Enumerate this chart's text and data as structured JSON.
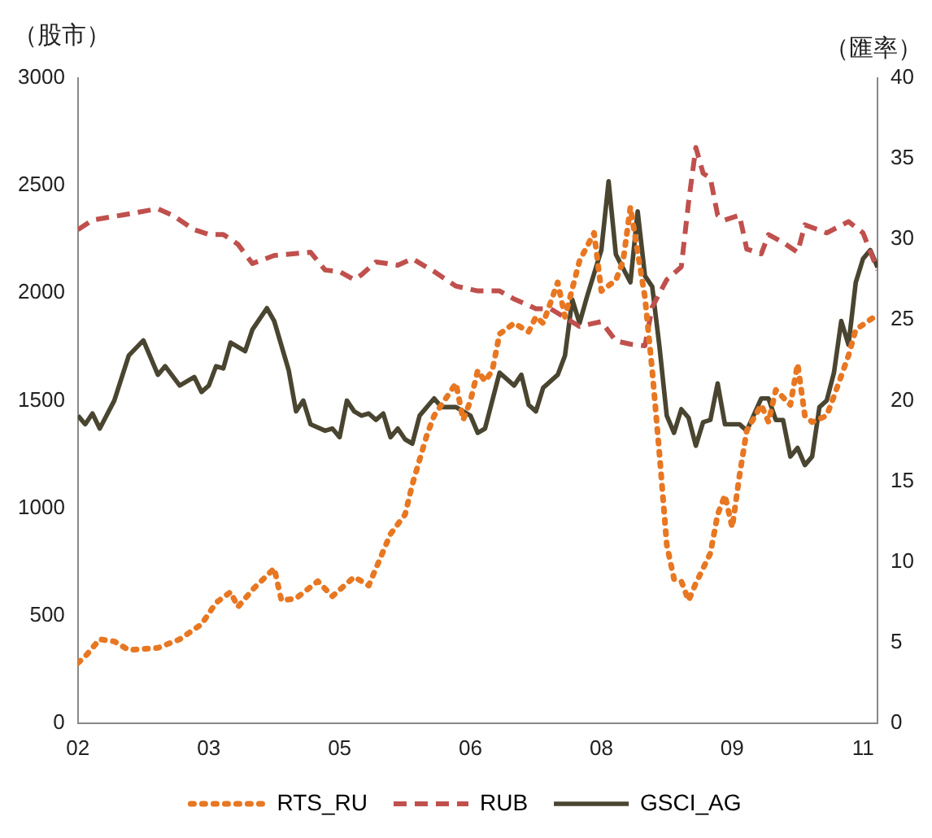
{
  "chart_data": {
    "type": "line",
    "ylabel": "（股市）",
    "y2label": "（匯率）",
    "xlim": [
      "2002-01",
      "2011-03"
    ],
    "xticks": [
      {
        "value": "2002-01",
        "label": "02"
      },
      {
        "value": "2003-07",
        "label": "03"
      },
      {
        "value": "2005-01",
        "label": "05"
      },
      {
        "value": "2006-07",
        "label": "06"
      },
      {
        "value": "2008-01",
        "label": "08"
      },
      {
        "value": "2009-07",
        "label": "09"
      },
      {
        "value": "2011-01",
        "label": "11"
      }
    ],
    "ylim": [
      0,
      3000
    ],
    "yticks": [
      0,
      500,
      1000,
      1500,
      2000,
      2500,
      3000
    ],
    "y2lim": [
      0,
      40
    ],
    "y2ticks": [
      0,
      5,
      10,
      15,
      20,
      25,
      30,
      35,
      40
    ],
    "grid": false,
    "legend": "bottom",
    "marker": "none",
    "series": [
      {
        "name": "RTS_RU",
        "color": "#e87722",
        "line_style": "dotted",
        "x": [
          "2002-01",
          "2002-02",
          "2002-04",
          "2002-06",
          "2002-08",
          "2002-12",
          "2003-03",
          "2003-06",
          "2003-08",
          "2003-10",
          "2003-11",
          "2004-01",
          "2004-04",
          "2004-05",
          "2004-07",
          "2004-10",
          "2004-12",
          "2005-03",
          "2005-05",
          "2005-06",
          "2005-08",
          "2005-10",
          "2005-11",
          "2006-01",
          "2006-02",
          "2006-05",
          "2006-06",
          "2006-07",
          "2006-08",
          "2006-09",
          "2006-10",
          "2006-11",
          "2007-01",
          "2007-03",
          "2007-04",
          "2007-05",
          "2007-07",
          "2007-08",
          "2007-10",
          "2007-12",
          "2008-01",
          "2008-03",
          "2008-04",
          "2008-05",
          "2008-06",
          "2008-07",
          "2008-08",
          "2008-09",
          "2008-10",
          "2008-11",
          "2008-12",
          "2009-01",
          "2009-02",
          "2009-04",
          "2009-05",
          "2009-06",
          "2009-07",
          "2009-08",
          "2009-09",
          "2009-11",
          "2009-12",
          "2010-01",
          "2010-03",
          "2010-04",
          "2010-05",
          "2010-06",
          "2010-08",
          "2010-09",
          "2010-11",
          "2010-12",
          "2011-03"
        ],
        "values": [
          280,
          310,
          390,
          380,
          340,
          350,
          390,
          460,
          560,
          610,
          540,
          620,
          720,
          570,
          580,
          660,
          590,
          680,
          640,
          720,
          880,
          970,
          1110,
          1340,
          1430,
          1580,
          1410,
          1500,
          1640,
          1590,
          1640,
          1810,
          1860,
          1820,
          1890,
          1860,
          2050,
          1890,
          2150,
          2280,
          2010,
          2060,
          2150,
          2400,
          2190,
          1980,
          1640,
          1250,
          830,
          670,
          660,
          570,
          650,
          790,
          970,
          1060,
          910,
          1150,
          1360,
          1480,
          1400,
          1550,
          1480,
          1670,
          1430,
          1400,
          1430,
          1520,
          1710,
          1830,
          1900
        ]
      },
      {
        "name": "RUB",
        "color": "#c0504d",
        "line_style": "dashed",
        "axis": "y2",
        "x": [
          "2002-01",
          "2002-03",
          "2002-07",
          "2002-12",
          "2003-02",
          "2003-05",
          "2003-07",
          "2003-09",
          "2003-11",
          "2004-01",
          "2004-04",
          "2004-09",
          "2004-11",
          "2005-01",
          "2005-03",
          "2005-04",
          "2005-06",
          "2005-09",
          "2005-11",
          "2006-02",
          "2006-05",
          "2006-08",
          "2006-11",
          "2007-01",
          "2007-04",
          "2007-06",
          "2007-10",
          "2008-01",
          "2008-03",
          "2008-05",
          "2008-07",
          "2008-08",
          "2008-10",
          "2008-12",
          "2009-01",
          "2009-02",
          "2009-03",
          "2009-04",
          "2009-05",
          "2009-06",
          "2009-08",
          "2009-09",
          "2009-11",
          "2009-12",
          "2010-02",
          "2010-04",
          "2010-05",
          "2010-08",
          "2010-11",
          "2011-01",
          "2011-03"
        ],
        "values": [
          30.6,
          31.2,
          31.5,
          31.9,
          31.5,
          30.6,
          30.3,
          30.3,
          29.7,
          28.5,
          29.0,
          29.2,
          28.1,
          28.0,
          27.5,
          27.8,
          28.6,
          28.4,
          28.8,
          28.0,
          27.1,
          26.8,
          26.8,
          26.3,
          25.7,
          25.7,
          24.6,
          24.9,
          23.7,
          23.5,
          23.4,
          25.8,
          27.5,
          28.3,
          32.3,
          35.7,
          34.1,
          33.8,
          31.5,
          31.2,
          31.5,
          29.4,
          29.1,
          30.3,
          29.8,
          29.2,
          30.9,
          30.4,
          31.1,
          30.4,
          28.1
        ]
      },
      {
        "name": "GSCI_AG",
        "color": "#4a4530",
        "line_style": "solid",
        "x": [
          "2002-01",
          "2002-02",
          "2002-03",
          "2002-04",
          "2002-06",
          "2002-08",
          "2002-10",
          "2002-12",
          "2003-01",
          "2003-03",
          "2003-05",
          "2003-06",
          "2003-07",
          "2003-08",
          "2003-09",
          "2003-10",
          "2003-12",
          "2004-01",
          "2004-03",
          "2004-04",
          "2004-06",
          "2004-07",
          "2004-08",
          "2004-09",
          "2004-11",
          "2004-12",
          "2005-01",
          "2005-02",
          "2005-03",
          "2005-04",
          "2005-05",
          "2005-06",
          "2005-07",
          "2005-08",
          "2005-09",
          "2005-10",
          "2005-11",
          "2005-12",
          "2006-02",
          "2006-03",
          "2006-05",
          "2006-07",
          "2006-08",
          "2006-09",
          "2006-11",
          "2007-01",
          "2007-02",
          "2007-03",
          "2007-04",
          "2007-05",
          "2007-07",
          "2007-08",
          "2007-09",
          "2007-10",
          "2007-11",
          "2008-01",
          "2008-02",
          "2008-03",
          "2008-05",
          "2008-06",
          "2008-07",
          "2008-08",
          "2008-09",
          "2008-10",
          "2008-11",
          "2008-12",
          "2009-01",
          "2009-02",
          "2009-03",
          "2009-04",
          "2009-05",
          "2009-06",
          "2009-08",
          "2009-09",
          "2009-11",
          "2009-12",
          "2010-01",
          "2010-02",
          "2010-03",
          "2010-04",
          "2010-05",
          "2010-06",
          "2010-07",
          "2010-08",
          "2010-09",
          "2010-10",
          "2010-11",
          "2010-12",
          "2011-01",
          "2011-02",
          "2011-03"
        ],
        "values": [
          1430,
          1390,
          1440,
          1370,
          1500,
          1710,
          1780,
          1620,
          1660,
          1570,
          1610,
          1540,
          1570,
          1660,
          1650,
          1770,
          1730,
          1830,
          1930,
          1870,
          1640,
          1450,
          1500,
          1390,
          1360,
          1370,
          1330,
          1500,
          1450,
          1430,
          1440,
          1410,
          1440,
          1330,
          1370,
          1320,
          1300,
          1430,
          1510,
          1470,
          1470,
          1430,
          1350,
          1370,
          1630,
          1570,
          1620,
          1480,
          1450,
          1560,
          1620,
          1710,
          1970,
          1860,
          1980,
          2200,
          2520,
          2180,
          2050,
          2380,
          2080,
          2030,
          1750,
          1430,
          1350,
          1460,
          1420,
          1290,
          1400,
          1410,
          1580,
          1390,
          1390,
          1360,
          1510,
          1510,
          1410,
          1410,
          1240,
          1280,
          1200,
          1240,
          1470,
          1500,
          1630,
          1870,
          1760,
          2050,
          2160,
          2200,
          2120
        ]
      }
    ]
  }
}
